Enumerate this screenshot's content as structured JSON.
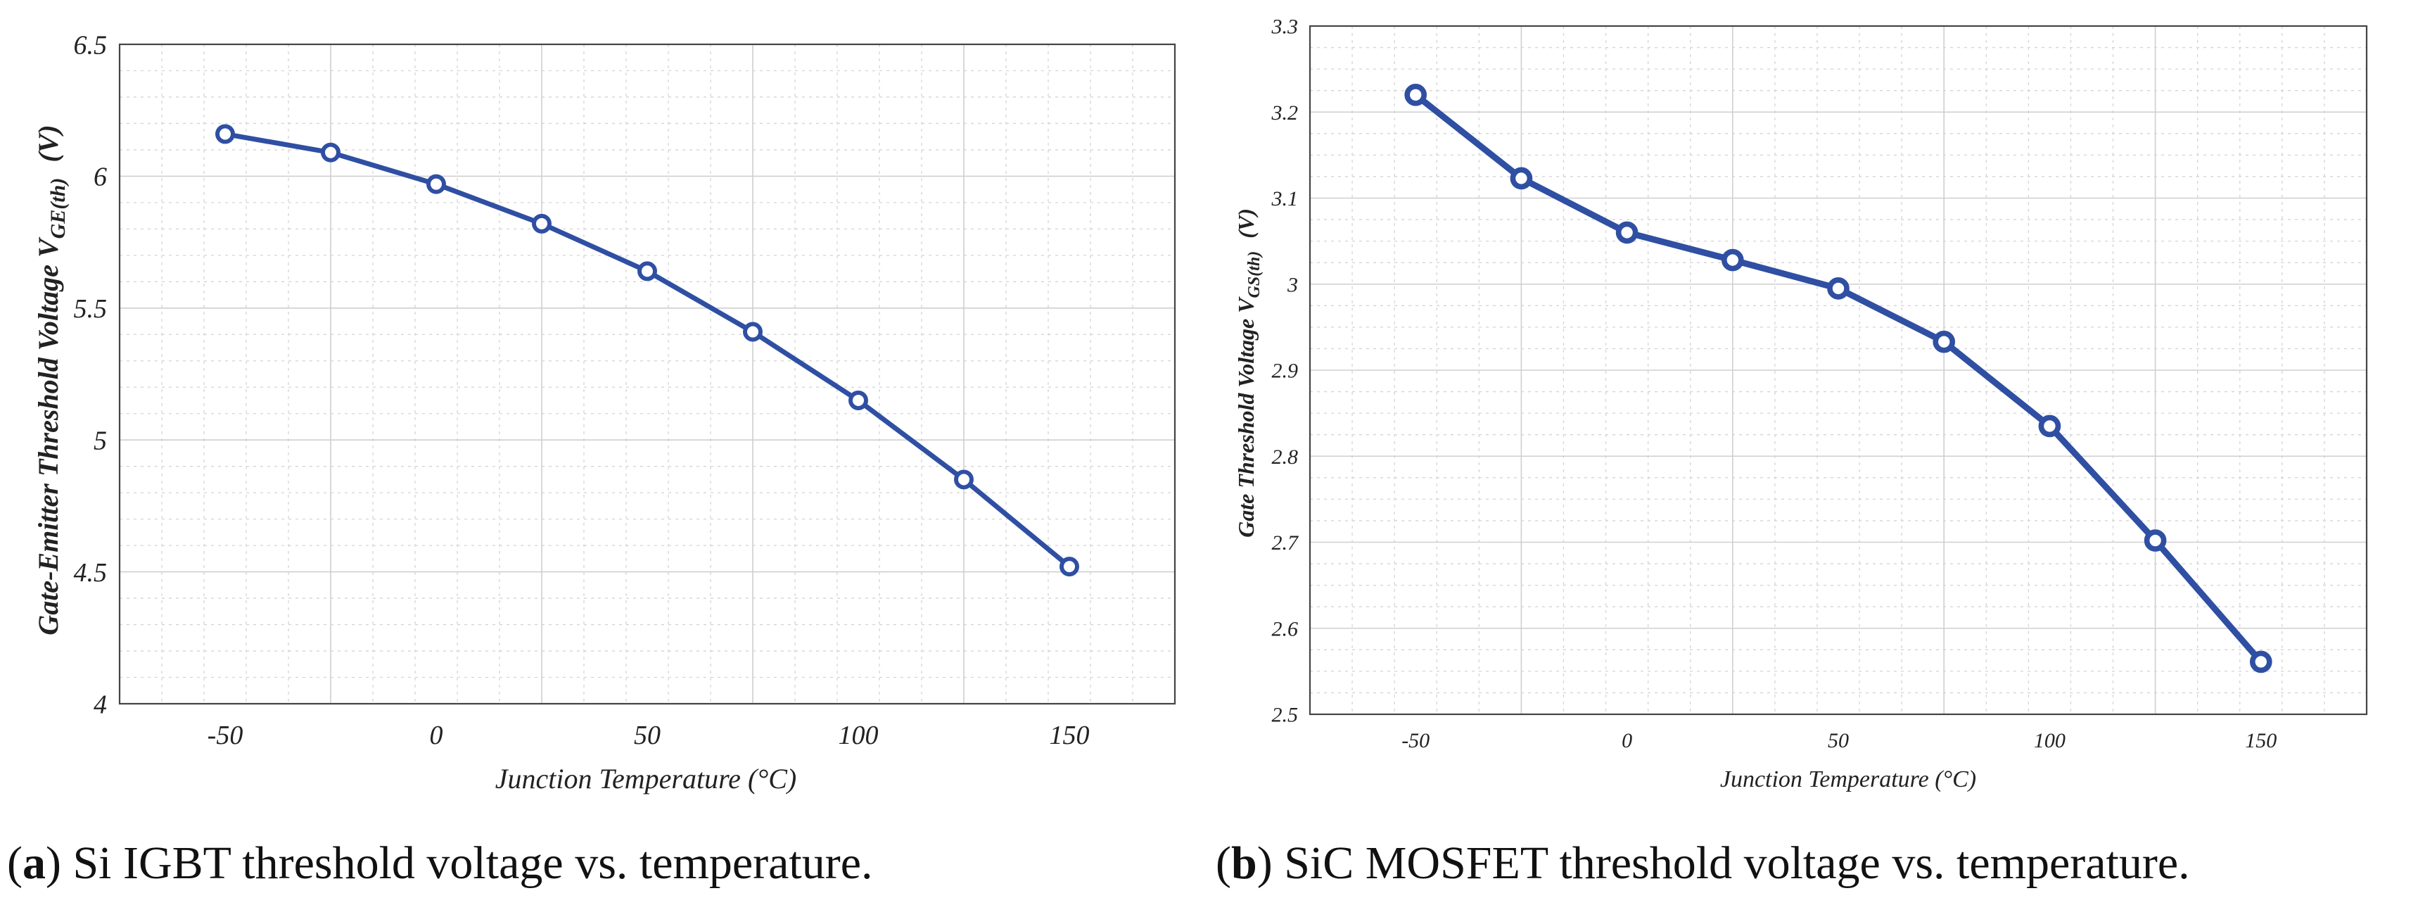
{
  "chart_data": [
    {
      "type": "line",
      "xlabel": "Junction Temperature (°C)",
      "ylabel_main": "Gate-Emitter Threshold Voltage V",
      "ylabel_sub": "GE(th)",
      "ylabel_unit": "(V)",
      "xlim": [
        -75,
        175
      ],
      "ylim": [
        4,
        6.5
      ],
      "xticks": [
        -50,
        0,
        50,
        100,
        150
      ],
      "xtick_labels": [
        "-50",
        "0",
        "50",
        "100",
        "150"
      ],
      "yticks": [
        4,
        4.5,
        5,
        5.5,
        6,
        6.5
      ],
      "ytick_labels": [
        "4",
        "4.5",
        "5",
        "5.5",
        "6",
        "6.5"
      ],
      "grid": true,
      "color": "#2f4fa3",
      "series": [
        {
          "name": "Si IGBT",
          "x": [
            -50,
            -25,
            0,
            25,
            50,
            75,
            100,
            125,
            150
          ],
          "y": [
            6.16,
            6.09,
            5.97,
            5.82,
            5.64,
            5.41,
            5.15,
            4.85,
            4.52
          ]
        }
      ],
      "caption_label": "a",
      "caption_text": " Si IGBT threshold voltage vs. temperature."
    },
    {
      "type": "line",
      "xlabel": "Junction Temperature (°C)",
      "ylabel_main": "Gate Threshold Voltage V",
      "ylabel_sub": "GS(th)",
      "ylabel_unit": "(V)",
      "xlim": [
        -75,
        175
      ],
      "ylim": [
        2.5,
        3.3
      ],
      "xticks": [
        -50,
        0,
        50,
        100,
        150
      ],
      "xtick_labels": [
        "-50",
        "0",
        "50",
        "100",
        "150"
      ],
      "yticks": [
        2.5,
        2.6,
        2.7,
        2.8,
        2.9,
        3.0,
        3.1,
        3.2,
        3.3
      ],
      "ytick_labels": [
        "2.5",
        "2.6",
        "2.7",
        "2.8",
        "2.9",
        "3",
        "3.1",
        "3.2",
        "3.3"
      ],
      "grid": true,
      "color": "#2f4fa3",
      "series": [
        {
          "name": "SiC MOSFET",
          "x": [
            -50,
            -25,
            0,
            25,
            50,
            75,
            100,
            125,
            150
          ],
          "y": [
            3.22,
            3.123,
            3.06,
            3.028,
            2.995,
            2.933,
            2.835,
            2.702,
            2.561
          ]
        }
      ],
      "caption_label": "b",
      "caption_text": " SiC MOSFET threshold voltage vs. temperature."
    }
  ]
}
